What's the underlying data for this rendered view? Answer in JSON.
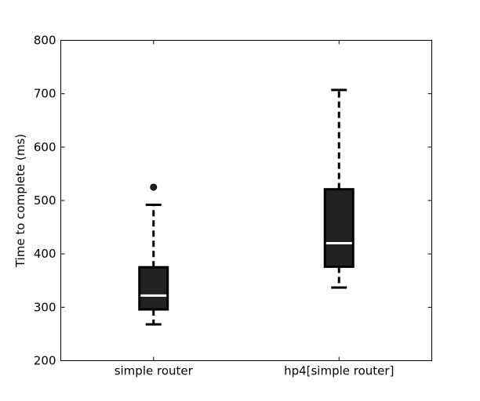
{
  "chart_data": {
    "type": "box",
    "title": "",
    "xlabel": "",
    "ylabel": "Time to complete (ms)",
    "ylim": [
      200,
      800
    ],
    "yticks": [
      200,
      300,
      400,
      500,
      600,
      700,
      800
    ],
    "grid": false,
    "categories": [
      "simple router",
      "hp4[simple router]"
    ],
    "boxes": [
      {
        "whisker_low": 268,
        "q1": 296,
        "median": 322,
        "q3": 375,
        "whisker_high": 492,
        "outliers": [
          525
        ]
      },
      {
        "whisker_low": 337,
        "q1": 376,
        "median": 420,
        "q3": 521,
        "whisker_high": 707,
        "outliers": []
      }
    ],
    "colors": {
      "box_fill": "#222222",
      "box_edge": "#000000",
      "median_line": "#ffffff",
      "whisker": "#000000",
      "outlier": "#222222"
    }
  }
}
